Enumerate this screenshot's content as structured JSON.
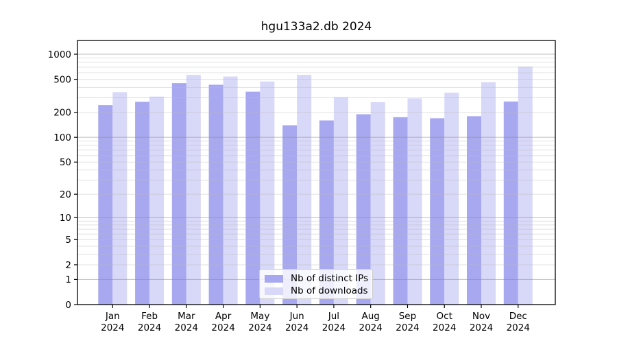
{
  "chart_data": {
    "type": "bar",
    "title": "hgu133a2.db 2024",
    "months": [
      "Jan",
      "Feb",
      "Mar",
      "Apr",
      "May",
      "Jun",
      "Jul",
      "Aug",
      "Sep",
      "Oct",
      "Nov",
      "Dec"
    ],
    "year": "2024",
    "series": [
      {
        "name": "Nb of distinct IPs",
        "color": "#a8a8f0",
        "values": [
          245,
          268,
          450,
          430,
          355,
          140,
          160,
          190,
          175,
          170,
          180,
          270
        ]
      },
      {
        "name": "Nb of downloads",
        "color": "#d8d8f8",
        "values": [
          350,
          310,
          565,
          540,
          470,
          565,
          305,
          265,
          295,
          345,
          460,
          710
        ]
      }
    ],
    "yscale": "log-like (log10 of value+1), zero shown at axis bottom",
    "y_ticks": [
      0,
      1,
      2,
      5,
      10,
      20,
      50,
      100,
      200,
      500,
      1000
    ],
    "ylim": [
      0,
      1000
    ],
    "grid": "horizontal major (decades, darker) + minor (log subdivisions, fainter)",
    "legend_position": "bottom-center inside plot",
    "colors": {
      "major_grid": "#bdbdbd",
      "minor_grid": "#e4e4e4",
      "axis": "#000000",
      "background": "#ffffff"
    }
  }
}
